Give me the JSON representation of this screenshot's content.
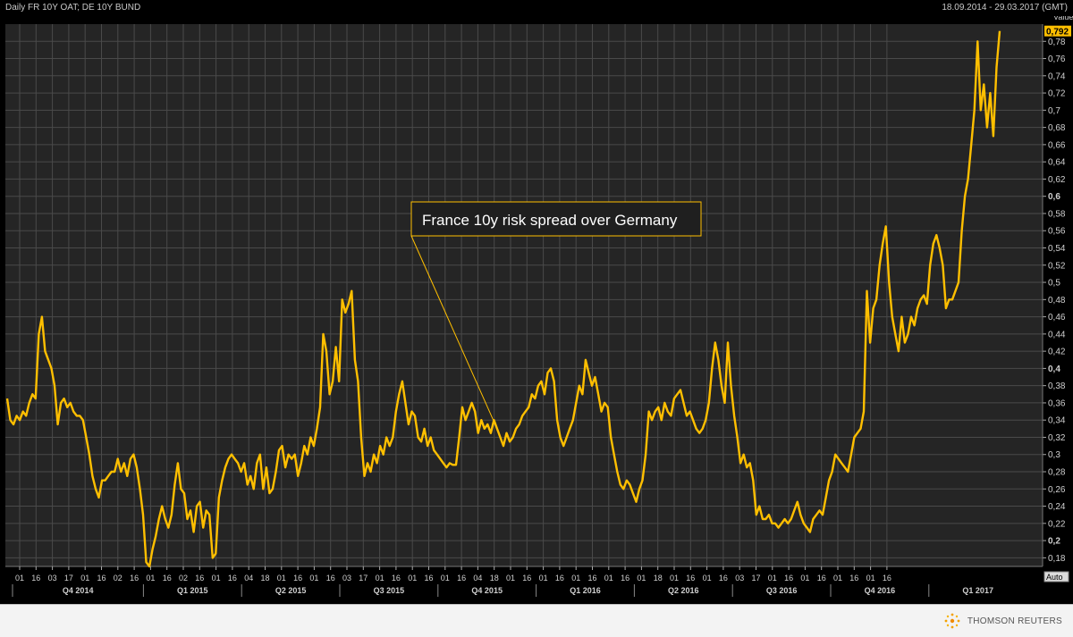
{
  "header": {
    "title": "Daily FR 10Y OAT; DE 10Y BUND",
    "date_range": "18.09.2014 - 29.03.2017 (GMT)"
  },
  "footer": {
    "brand": "THOMSON REUTERS"
  },
  "colors": {
    "background": "#000000",
    "plot_bg": "#252525",
    "grid": "#4a4a4a",
    "line": "#ffbf00",
    "text": "#cfcfcf"
  },
  "chart_data": {
    "type": "line",
    "title": "Daily FR 10Y OAT; DE 10Y BUND",
    "ylabel": "Value",
    "ylim": [
      0.17,
      0.8
    ],
    "yticks": [
      {
        "v": 0.78,
        "label": "0,78",
        "bold": false
      },
      {
        "v": 0.76,
        "label": "0,76",
        "bold": false
      },
      {
        "v": 0.74,
        "label": "0,74",
        "bold": false
      },
      {
        "v": 0.72,
        "label": "0,72",
        "bold": false
      },
      {
        "v": 0.7,
        "label": "0,7",
        "bold": false
      },
      {
        "v": 0.68,
        "label": "0,68",
        "bold": false
      },
      {
        "v": 0.66,
        "label": "0,66",
        "bold": false
      },
      {
        "v": 0.64,
        "label": "0,64",
        "bold": false
      },
      {
        "v": 0.62,
        "label": "0,62",
        "bold": false
      },
      {
        "v": 0.6,
        "label": "0,6",
        "bold": true
      },
      {
        "v": 0.58,
        "label": "0,58",
        "bold": false
      },
      {
        "v": 0.56,
        "label": "0,56",
        "bold": false
      },
      {
        "v": 0.54,
        "label": "0,54",
        "bold": false
      },
      {
        "v": 0.52,
        "label": "0,52",
        "bold": false
      },
      {
        "v": 0.5,
        "label": "0,5",
        "bold": false
      },
      {
        "v": 0.48,
        "label": "0,48",
        "bold": false
      },
      {
        "v": 0.46,
        "label": "0,46",
        "bold": false
      },
      {
        "v": 0.44,
        "label": "0,44",
        "bold": false
      },
      {
        "v": 0.42,
        "label": "0,42",
        "bold": false
      },
      {
        "v": 0.4,
        "label": "0,4",
        "bold": true
      },
      {
        "v": 0.38,
        "label": "0,38",
        "bold": false
      },
      {
        "v": 0.36,
        "label": "0,36",
        "bold": false
      },
      {
        "v": 0.34,
        "label": "0,34",
        "bold": false
      },
      {
        "v": 0.32,
        "label": "0,32",
        "bold": false
      },
      {
        "v": 0.3,
        "label": "0,3",
        "bold": false
      },
      {
        "v": 0.28,
        "label": "0,28",
        "bold": false
      },
      {
        "v": 0.26,
        "label": "0,26",
        "bold": false
      },
      {
        "v": 0.24,
        "label": "0,24",
        "bold": false
      },
      {
        "v": 0.22,
        "label": "0,22",
        "bold": false
      },
      {
        "v": 0.2,
        "label": "0,2",
        "bold": true
      },
      {
        "v": 0.18,
        "label": "0,18",
        "bold": false
      }
    ],
    "y_header": "Value",
    "last_value": {
      "v": 0.792,
      "label": "0,792"
    },
    "auto_label": "Auto",
    "x_tick_labels": [
      "01",
      "16",
      "03",
      "17",
      "01",
      "16",
      "02",
      "16",
      "01",
      "16",
      "02",
      "16",
      "01",
      "16",
      "04",
      "18",
      "01",
      "16",
      "01",
      "16",
      "03",
      "17",
      "01",
      "16",
      "01",
      "16",
      "01",
      "16",
      "04",
      "18",
      "01",
      "16",
      "01",
      "16",
      "01",
      "16",
      "01",
      "16",
      "01",
      "18",
      "01",
      "16",
      "01",
      "16",
      "03",
      "17",
      "01",
      "16",
      "01",
      "16",
      "01",
      "16",
      "01",
      "16"
    ],
    "quarters": [
      "Q4 2014",
      "Q1 2015",
      "Q2 2015",
      "Q3 2015",
      "Q4 2015",
      "Q1 2016",
      "Q2 2016",
      "Q3 2016",
      "Q4 2016",
      "Q1 2017"
    ],
    "annotation": "France 10y risk spread over Germany",
    "annotation_point": {
      "x": 0.494
    },
    "series": [
      {
        "values": [
          0.365,
          0.34,
          0.335,
          0.345,
          0.34,
          0.35,
          0.345,
          0.36,
          0.37,
          0.365,
          0.44,
          0.46,
          0.42,
          0.41,
          0.4,
          0.38,
          0.335,
          0.36,
          0.365,
          0.355,
          0.36,
          0.35,
          0.345,
          0.345,
          0.34,
          0.32,
          0.3,
          0.275,
          0.26,
          0.25,
          0.27,
          0.27,
          0.275,
          0.28,
          0.28,
          0.295,
          0.28,
          0.29,
          0.275,
          0.295,
          0.3,
          0.285,
          0.26,
          0.23,
          0.175,
          0.17,
          0.19,
          0.205,
          0.225,
          0.24,
          0.225,
          0.215,
          0.23,
          0.265,
          0.29,
          0.26,
          0.255,
          0.225,
          0.235,
          0.21,
          0.24,
          0.245,
          0.215,
          0.235,
          0.23,
          0.18,
          0.185,
          0.25,
          0.27,
          0.285,
          0.295,
          0.3,
          0.295,
          0.29,
          0.28,
          0.29,
          0.265,
          0.275,
          0.26,
          0.29,
          0.3,
          0.26,
          0.285,
          0.255,
          0.26,
          0.28,
          0.305,
          0.31,
          0.285,
          0.3,
          0.295,
          0.3,
          0.275,
          0.29,
          0.31,
          0.3,
          0.32,
          0.31,
          0.33,
          0.355,
          0.44,
          0.42,
          0.37,
          0.385,
          0.425,
          0.385,
          0.48,
          0.465,
          0.475,
          0.49,
          0.41,
          0.385,
          0.32,
          0.275,
          0.29,
          0.28,
          0.3,
          0.29,
          0.31,
          0.3,
          0.32,
          0.31,
          0.32,
          0.35,
          0.37,
          0.385,
          0.36,
          0.335,
          0.35,
          0.345,
          0.32,
          0.315,
          0.33,
          0.31,
          0.32,
          0.305,
          0.3,
          0.295,
          0.29,
          0.285,
          0.29,
          0.288,
          0.288,
          0.32,
          0.355,
          0.34,
          0.35,
          0.36,
          0.35,
          0.325,
          0.34,
          0.33,
          0.335,
          0.325,
          0.34,
          0.33,
          0.32,
          0.31,
          0.325,
          0.315,
          0.32,
          0.33,
          0.335,
          0.345,
          0.35,
          0.355,
          0.37,
          0.365,
          0.38,
          0.385,
          0.37,
          0.395,
          0.4,
          0.385,
          0.34,
          0.32,
          0.31,
          0.32,
          0.33,
          0.34,
          0.36,
          0.38,
          0.37,
          0.41,
          0.395,
          0.38,
          0.39,
          0.37,
          0.35,
          0.36,
          0.355,
          0.32,
          0.3,
          0.28,
          0.265,
          0.26,
          0.27,
          0.265,
          0.255,
          0.245,
          0.26,
          0.27,
          0.3,
          0.35,
          0.34,
          0.35,
          0.355,
          0.34,
          0.36,
          0.35,
          0.345,
          0.365,
          0.37,
          0.375,
          0.36,
          0.345,
          0.35,
          0.34,
          0.33,
          0.325,
          0.33,
          0.34,
          0.36,
          0.4,
          0.43,
          0.41,
          0.38,
          0.36,
          0.43,
          0.38,
          0.345,
          0.32,
          0.29,
          0.3,
          0.285,
          0.29,
          0.27,
          0.23,
          0.24,
          0.225,
          0.225,
          0.23,
          0.22,
          0.22,
          0.215,
          0.22,
          0.225,
          0.22,
          0.225,
          0.235,
          0.245,
          0.23,
          0.22,
          0.215,
          0.21,
          0.225,
          0.23,
          0.235,
          0.23,
          0.25,
          0.27,
          0.28,
          0.3,
          0.295,
          0.29,
          0.285,
          0.28,
          0.3,
          0.32,
          0.325,
          0.33,
          0.35,
          0.49,
          0.43,
          0.47,
          0.48,
          0.52,
          0.545,
          0.565,
          0.5,
          0.46,
          0.44,
          0.42,
          0.46,
          0.43,
          0.44,
          0.46,
          0.45,
          0.47,
          0.48,
          0.485,
          0.475,
          0.52,
          0.545,
          0.555,
          0.54,
          0.52,
          0.47,
          0.48,
          0.48,
          0.49,
          0.5,
          0.56,
          0.6,
          0.62,
          0.66,
          0.7,
          0.78,
          0.7,
          0.73,
          0.68,
          0.72,
          0.67,
          0.75,
          0.792
        ]
      }
    ]
  }
}
